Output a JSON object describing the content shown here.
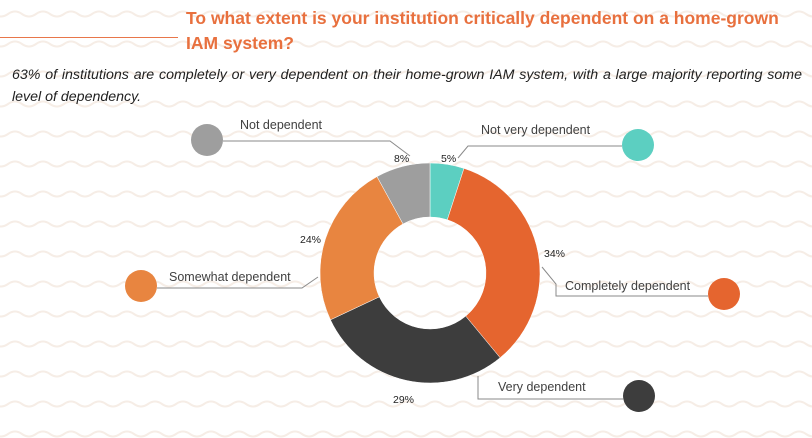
{
  "header": {
    "title": "To what extent is your institution critically dependent on a home-grown IAM system?",
    "subtitle": "63% of institutions are completely or very dependent on their home-grown IAM system, with a large majority reporting some level of dependency."
  },
  "chart_data": {
    "type": "pie",
    "variant": "donut",
    "title": "To what extent is your institution critically dependent on a home-grown IAM system?",
    "legend": "labels-with-leaders",
    "slices": [
      {
        "key": "not-very",
        "label": "Not very dependent",
        "value": 5,
        "pct_label": "5%",
        "color": "#5ccfc1"
      },
      {
        "key": "completely",
        "label": "Completely dependent",
        "value": 34,
        "pct_label": "34%",
        "color": "#e5652f"
      },
      {
        "key": "very",
        "label": "Very dependent",
        "value": 29,
        "pct_label": "29%",
        "color": "#3d3d3d"
      },
      {
        "key": "somewhat",
        "label": "Somewhat dependent",
        "value": 24,
        "pct_label": "24%",
        "color": "#e88540"
      },
      {
        "key": "not",
        "label": "Not dependent",
        "value": 8,
        "pct_label": "8%",
        "color": "#9e9e9e"
      }
    ]
  }
}
